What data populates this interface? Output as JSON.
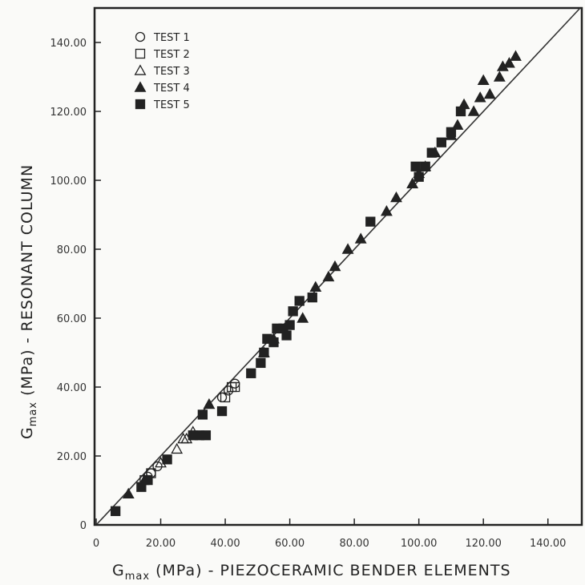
{
  "chart_data": {
    "type": "scatter",
    "xlabel_prefix": "G",
    "xlabel_sub": "max",
    "xlabel_rest": " (MPa) - PIEZOCERAMIC BENDER ELEMENTS",
    "ylabel_prefix": "G",
    "ylabel_sub": "max",
    "ylabel_rest": " (MPa) - RESONANT COLUMN",
    "xlim": [
      0,
      150
    ],
    "ylim": [
      0,
      150
    ],
    "x_ticks": [
      0,
      20,
      40,
      60,
      80,
      100,
      120,
      140
    ],
    "y_ticks": [
      0,
      20,
      40,
      60,
      80,
      100,
      120,
      140
    ],
    "x_tick_labels": [
      "0",
      "20.00",
      "40.00",
      "60.00",
      "80.00",
      "100.00",
      "120.00",
      "140.00"
    ],
    "y_tick_labels": [
      "0",
      "20.00",
      "40.00",
      "60.00",
      "80.00",
      "100.00",
      "120.00",
      "140.00"
    ],
    "grid": false,
    "legend_position": "top-left",
    "reference_line": {
      "x": [
        0,
        150
      ],
      "y": [
        0,
        150
      ]
    },
    "series": [
      {
        "name": "TEST 1",
        "marker": "circle-open",
        "points": [
          [
            16,
            14
          ],
          [
            17,
            15
          ],
          [
            19,
            17
          ],
          [
            39,
            37
          ],
          [
            41,
            39
          ],
          [
            43,
            41
          ]
        ]
      },
      {
        "name": "TEST 2",
        "marker": "square-open",
        "points": [
          [
            15,
            13
          ],
          [
            17,
            15
          ],
          [
            40,
            37
          ],
          [
            42,
            40
          ],
          [
            43,
            40
          ]
        ]
      },
      {
        "name": "TEST 3",
        "marker": "triangle-open",
        "points": [
          [
            20,
            18
          ],
          [
            25,
            22
          ],
          [
            27,
            25
          ],
          [
            28,
            25
          ],
          [
            30,
            27
          ]
        ]
      },
      {
        "name": "TEST 4",
        "marker": "triangle-filled",
        "points": [
          [
            10,
            9
          ],
          [
            15,
            13
          ],
          [
            35,
            35
          ],
          [
            52,
            50
          ],
          [
            55,
            54
          ],
          [
            64,
            60
          ],
          [
            68,
            69
          ],
          [
            72,
            72
          ],
          [
            74,
            75
          ],
          [
            78,
            80
          ],
          [
            82,
            83
          ],
          [
            90,
            91
          ],
          [
            93,
            95
          ],
          [
            98,
            99
          ],
          [
            100,
            102
          ],
          [
            102,
            104
          ],
          [
            105,
            108
          ],
          [
            110,
            113
          ],
          [
            112,
            116
          ],
          [
            114,
            122
          ],
          [
            117,
            120
          ],
          [
            119,
            124
          ],
          [
            120,
            129
          ],
          [
            122,
            125
          ],
          [
            125,
            130
          ],
          [
            126,
            133
          ],
          [
            128,
            134
          ],
          [
            130,
            136
          ]
        ]
      },
      {
        "name": "TEST 5",
        "marker": "square-filled",
        "points": [
          [
            6,
            4
          ],
          [
            14,
            11
          ],
          [
            16,
            13
          ],
          [
            22,
            19
          ],
          [
            30,
            26
          ],
          [
            32,
            26
          ],
          [
            33,
            32
          ],
          [
            34,
            26
          ],
          [
            39,
            33
          ],
          [
            48,
            44
          ],
          [
            51,
            47
          ],
          [
            52,
            50
          ],
          [
            53,
            54
          ],
          [
            55,
            53
          ],
          [
            56,
            57
          ],
          [
            58,
            57
          ],
          [
            59,
            55
          ],
          [
            60,
            58
          ],
          [
            61,
            62
          ],
          [
            63,
            65
          ],
          [
            67,
            66
          ],
          [
            85,
            88
          ],
          [
            99,
            104
          ],
          [
            100,
            101
          ],
          [
            102,
            104
          ],
          [
            104,
            108
          ],
          [
            107,
            111
          ],
          [
            110,
            114
          ],
          [
            113,
            120
          ]
        ]
      }
    ]
  }
}
